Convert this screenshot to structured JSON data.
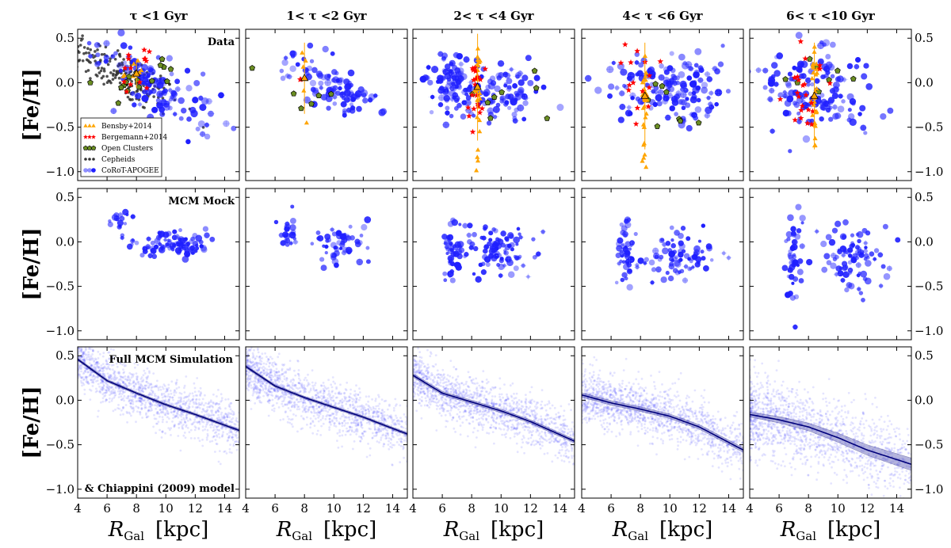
{
  "chart_data": {
    "type": "scatter",
    "layout": "3x5 grid of scatter panels",
    "xlim": [
      4,
      15
    ],
    "ylim": [
      -1.1,
      0.6
    ],
    "x_ticks": [
      4,
      6,
      8,
      10,
      12,
      14
    ],
    "y_ticks": [
      0.5,
      0.0,
      -0.5,
      -1.0
    ],
    "y_tick_labels": [
      "0.5",
      "0.0",
      "−0.5",
      "−1.0"
    ],
    "xlabel_main": "R",
    "xlabel_sub": "Gal",
    "xlabel_unit": "[kpc]",
    "ylabel": "[Fe/H]",
    "column_titles": [
      "τ <1 Gyr",
      "1< τ <2 Gyr",
      "2< τ <4 Gyr",
      "4< τ <6 Gyr",
      "6< τ <10 Gyr"
    ],
    "row_labels": [
      "Data",
      "MCM Mock",
      "Full MCM Simulation"
    ],
    "row3_note": "& Chiappini (2009) model",
    "legend": [
      {
        "label": "Bensby+2014",
        "marker": "triangle",
        "color": "#ffa500"
      },
      {
        "label": "Bergemann+2014",
        "marker": "star",
        "color": "#ff0000"
      },
      {
        "label": "Open Clusters",
        "marker": "pentagon",
        "color": "#6b8e23"
      },
      {
        "label": "Cepheids",
        "marker": "circle-small",
        "color": "#333333"
      },
      {
        "label": "CoRoT-APOGEE",
        "marker": "circle",
        "color": "#1f1fff"
      }
    ],
    "colors": {
      "blue": "#1f1fff",
      "orange": "#ffa500",
      "red": "#ff0000",
      "green": "#6b8e23",
      "dark": "#333333",
      "model_line": "#00007a"
    },
    "model_trend": {
      "x": [
        4,
        6,
        8,
        10,
        12,
        15
      ],
      "series": [
        {
          "y": [
            0.46,
            0.22,
            0.08,
            -0.05,
            -0.16,
            -0.34
          ]
        },
        {
          "y": [
            0.38,
            0.16,
            0.03,
            -0.08,
            -0.19,
            -0.38
          ]
        },
        {
          "y": [
            0.28,
            0.08,
            -0.02,
            -0.12,
            -0.24,
            -0.46
          ]
        },
        {
          "y": [
            0.06,
            -0.03,
            -0.1,
            -0.18,
            -0.3,
            -0.56
          ]
        },
        {
          "y": [
            -0.16,
            -0.22,
            -0.3,
            -0.42,
            -0.56,
            -0.72
          ]
        }
      ],
      "band_halfwidth": [
        0.015,
        0.015,
        0.02,
        0.025,
        0.07
      ]
    },
    "data_clusters": [
      [
        {
          "cx": 9.5,
          "cy": -0.05,
          "sx": 2.2,
          "sy": 0.15,
          "slope": -0.09,
          "n": 120,
          "kind": "blue"
        },
        {
          "cx": 7.0,
          "cy": 0.1,
          "sx": 2.0,
          "sy": 0.14,
          "slope": -0.09,
          "n": 200,
          "kind": "dark"
        },
        {
          "cx": 7.8,
          "cy": 0.15,
          "sx": 0.5,
          "sy": 0.1,
          "slope": 0,
          "n": 14,
          "kind": "red"
        },
        {
          "cx": 8.0,
          "cy": 0.05,
          "sx": 1.5,
          "sy": 0.12,
          "slope": 0,
          "n": 16,
          "kind": "green"
        },
        {
          "cx": 8.0,
          "cy": 0.1,
          "sx": 0.4,
          "sy": 0.08,
          "slope": 0,
          "n": 8,
          "kind": "orange"
        }
      ],
      [
        {
          "cx": 10.5,
          "cy": -0.1,
          "sx": 1.4,
          "sy": 0.13,
          "slope": -0.06,
          "n": 90,
          "kind": "blue"
        },
        {
          "cx": 7.0,
          "cy": 0.2,
          "sx": 0.4,
          "sy": 0.12,
          "slope": 0,
          "n": 12,
          "kind": "blue"
        },
        {
          "cx": 8.3,
          "cy": -0.1,
          "sx": 1.0,
          "sy": 0.12,
          "slope": 0,
          "n": 6,
          "kind": "green"
        },
        {
          "cx": 8.0,
          "cy": 0.05,
          "sx": 0.1,
          "sy": 0.2,
          "slope": 0,
          "n": 5,
          "kind": "orange"
        },
        {
          "cx": 7.8,
          "cy": 0.05,
          "sx": 0.2,
          "sy": 0.2,
          "slope": 0,
          "n": 3,
          "kind": "red"
        }
      ],
      [
        {
          "cx": 6.5,
          "cy": -0.02,
          "sx": 0.6,
          "sy": 0.17,
          "slope": 0,
          "n": 90,
          "kind": "blue"
        },
        {
          "cx": 10.0,
          "cy": -0.1,
          "sx": 1.3,
          "sy": 0.17,
          "slope": 0,
          "n": 90,
          "kind": "blue"
        },
        {
          "cx": 8.4,
          "cy": -0.05,
          "sx": 0.1,
          "sy": 0.3,
          "slope": 0,
          "n": 30,
          "kind": "orange"
        },
        {
          "cx": 8.3,
          "cy": -0.1,
          "sx": 0.3,
          "sy": 0.2,
          "slope": 0,
          "n": 20,
          "kind": "red"
        },
        {
          "cx": 10.0,
          "cy": -0.2,
          "sx": 2.0,
          "sy": 0.15,
          "slope": 0,
          "n": 8,
          "kind": "green"
        }
      ],
      [
        {
          "cx": 10.0,
          "cy": -0.05,
          "sx": 2.0,
          "sy": 0.2,
          "slope": 0,
          "n": 150,
          "kind": "blue"
        },
        {
          "cx": 8.3,
          "cy": -0.15,
          "sx": 0.1,
          "sy": 0.3,
          "slope": 0,
          "n": 30,
          "kind": "orange"
        },
        {
          "cx": 7.8,
          "cy": -0.1,
          "sx": 0.8,
          "sy": 0.25,
          "slope": 0,
          "n": 16,
          "kind": "red"
        },
        {
          "cx": 10.5,
          "cy": -0.25,
          "sx": 1.5,
          "sy": 0.2,
          "slope": 0,
          "n": 8,
          "kind": "green"
        }
      ],
      [
        {
          "cx": 8.5,
          "cy": -0.1,
          "sx": 2.0,
          "sy": 0.22,
          "slope": 0,
          "n": 150,
          "kind": "blue"
        },
        {
          "cx": 8.4,
          "cy": -0.15,
          "sx": 0.1,
          "sy": 0.3,
          "slope": 0,
          "n": 30,
          "kind": "orange"
        },
        {
          "cx": 7.8,
          "cy": -0.1,
          "sx": 0.7,
          "sy": 0.22,
          "slope": 0,
          "n": 24,
          "kind": "red"
        },
        {
          "cx": 9.0,
          "cy": 0.05,
          "sx": 1.5,
          "sy": 0.15,
          "slope": 0,
          "n": 8,
          "kind": "green"
        }
      ]
    ],
    "mock_clusters": [
      [
        {
          "cx": 6.8,
          "cy": 0.2,
          "sx": 0.35,
          "sy": 0.08,
          "n": 16
        },
        {
          "cx": 10.5,
          "cy": -0.03,
          "sx": 1.2,
          "sy": 0.07,
          "n": 100
        }
      ],
      [
        {
          "cx": 7.0,
          "cy": 0.1,
          "sx": 0.35,
          "sy": 0.12,
          "n": 22
        },
        {
          "cx": 10.5,
          "cy": -0.03,
          "sx": 1.0,
          "sy": 0.1,
          "n": 55
        }
      ],
      [
        {
          "cx": 6.7,
          "cy": -0.05,
          "sx": 0.35,
          "sy": 0.2,
          "n": 45
        },
        {
          "cx": 10.0,
          "cy": -0.1,
          "sx": 1.2,
          "sy": 0.15,
          "n": 90
        }
      ],
      [
        {
          "cx": 7.0,
          "cy": -0.1,
          "sx": 0.3,
          "sy": 0.22,
          "n": 45
        },
        {
          "cx": 10.5,
          "cy": -0.15,
          "sx": 1.3,
          "sy": 0.15,
          "n": 80
        }
      ],
      [
        {
          "cx": 7.0,
          "cy": -0.2,
          "sx": 0.3,
          "sy": 0.25,
          "n": 45
        },
        {
          "cx": 11.0,
          "cy": -0.2,
          "sx": 1.2,
          "sy": 0.18,
          "n": 90
        }
      ]
    ]
  }
}
